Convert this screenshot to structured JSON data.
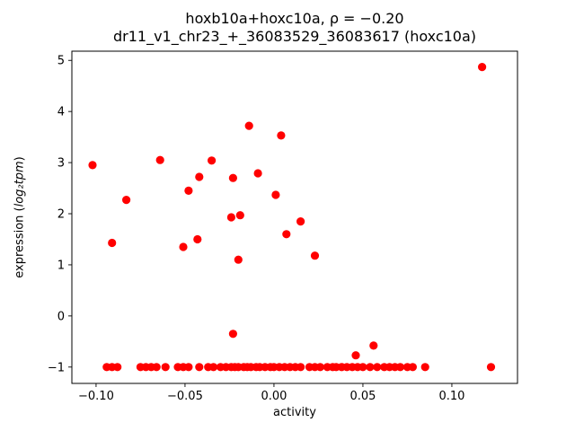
{
  "figure": {
    "title_line1": "hoxb10a+hoxc10a, ρ = −0.20",
    "title_line2": "dr11_v1_chr23_+_36083529_36083617 (hoxc10a)",
    "xlabel": "activity",
    "ylabel_prefix": "expression (",
    "ylabel_math": "log₂tpm",
    "ylabel_suffix": ")"
  },
  "chart_data": {
    "type": "scatter",
    "title": "hoxb10a+hoxc10a, ρ = −0.20",
    "subtitle": "dr11_v1_chr23_+_36083529_36083617 (hoxc10a)",
    "xlabel": "activity",
    "ylabel": "expression (log₂tpm)",
    "xlim": [
      -0.1136,
      0.1369
    ],
    "ylim": [
      -1.32,
      5.18
    ],
    "xticks": [
      -0.1,
      -0.05,
      0.0,
      0.05,
      0.1
    ],
    "xtick_labels": [
      "−0.10",
      "−0.05",
      "0.00",
      "0.05",
      "0.10"
    ],
    "yticks": [
      -1,
      0,
      1,
      2,
      3,
      4,
      5
    ],
    "ytick_labels": [
      "−1",
      "0",
      "1",
      "2",
      "3",
      "4",
      "5"
    ],
    "grid": false,
    "legend": "none",
    "marker_color": "#ff0000",
    "marker_radius": 4.6,
    "points": [
      [
        -0.102,
        2.95
      ],
      [
        -0.091,
        1.43
      ],
      [
        -0.083,
        2.27
      ],
      [
        -0.064,
        3.05
      ],
      [
        -0.051,
        1.35
      ],
      [
        -0.048,
        2.45
      ],
      [
        -0.043,
        1.5
      ],
      [
        -0.042,
        2.72
      ],
      [
        -0.035,
        3.04
      ],
      [
        -0.023,
        2.7
      ],
      [
        -0.024,
        1.93
      ],
      [
        -0.019,
        1.97
      ],
      [
        -0.02,
        1.1
      ],
      [
        -0.023,
        -0.35
      ],
      [
        -0.014,
        3.72
      ],
      [
        -0.009,
        2.79
      ],
      [
        0.001,
        2.37
      ],
      [
        0.004,
        3.53
      ],
      [
        0.007,
        1.6
      ],
      [
        0.015,
        1.85
      ],
      [
        0.023,
        1.18
      ],
      [
        0.046,
        -0.77
      ],
      [
        0.056,
        -0.58
      ],
      [
        0.117,
        4.87
      ],
      [
        -0.094,
        -1
      ],
      [
        -0.091,
        -1
      ],
      [
        -0.088,
        -1
      ],
      [
        -0.075,
        -1
      ],
      [
        -0.072,
        -1
      ],
      [
        -0.069,
        -1
      ],
      [
        -0.066,
        -1
      ],
      [
        -0.061,
        -1
      ],
      [
        -0.054,
        -1
      ],
      [
        -0.051,
        -1
      ],
      [
        -0.048,
        -1
      ],
      [
        -0.042,
        -1
      ],
      [
        -0.037,
        -1
      ],
      [
        -0.034,
        -1
      ],
      [
        -0.03,
        -1
      ],
      [
        -0.027,
        -1
      ],
      [
        -0.024,
        -1
      ],
      [
        -0.022,
        -1
      ],
      [
        -0.02,
        -1
      ],
      [
        -0.017,
        -1
      ],
      [
        -0.015,
        -1
      ],
      [
        -0.013,
        -1
      ],
      [
        -0.01,
        -1
      ],
      [
        -0.008,
        -1
      ],
      [
        -0.005,
        -1
      ],
      [
        -0.002,
        -1
      ],
      [
        0.0,
        -1
      ],
      [
        0.003,
        -1
      ],
      [
        0.006,
        -1
      ],
      [
        0.009,
        -1
      ],
      [
        0.012,
        -1
      ],
      [
        0.015,
        -1
      ],
      [
        0.02,
        -1
      ],
      [
        0.023,
        -1
      ],
      [
        0.026,
        -1
      ],
      [
        0.03,
        -1
      ],
      [
        0.033,
        -1
      ],
      [
        0.035,
        -1
      ],
      [
        0.038,
        -1
      ],
      [
        0.041,
        -1
      ],
      [
        0.044,
        -1
      ],
      [
        0.047,
        -1
      ],
      [
        0.05,
        -1
      ],
      [
        0.054,
        -1
      ],
      [
        0.058,
        -1
      ],
      [
        0.062,
        -1
      ],
      [
        0.065,
        -1
      ],
      [
        0.068,
        -1
      ],
      [
        0.071,
        -1
      ],
      [
        0.075,
        -1
      ],
      [
        0.078,
        -1
      ],
      [
        0.085,
        -1
      ],
      [
        0.122,
        -1
      ]
    ]
  }
}
